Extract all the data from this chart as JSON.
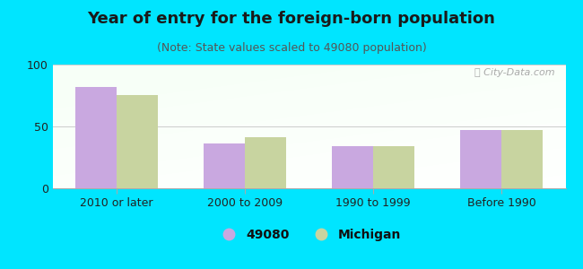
{
  "title": "Year of entry for the foreign-born population",
  "subtitle": "(Note: State values scaled to 49080 population)",
  "categories": [
    "2010 or later",
    "2000 to 2009",
    "1990 to 1999",
    "Before 1990"
  ],
  "values_49080": [
    82,
    36,
    34,
    47
  ],
  "values_michigan": [
    75,
    41,
    34,
    47
  ],
  "bar_color_49080": "#c9a8e0",
  "bar_color_michigan": "#c8d4a0",
  "background_outer": "#00e5ff",
  "ylim": [
    0,
    100
  ],
  "yticks": [
    0,
    50,
    100
  ],
  "legend_label_1": "49080",
  "legend_label_2": "Michigan",
  "grid_color": "#cccccc",
  "title_fontsize": 13,
  "subtitle_fontsize": 9,
  "tick_fontsize": 9,
  "legend_fontsize": 10,
  "bar_width": 0.32
}
